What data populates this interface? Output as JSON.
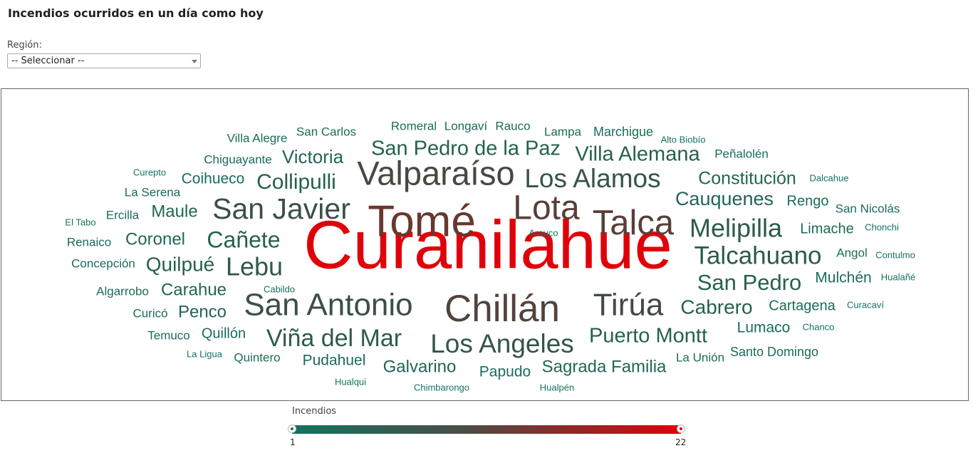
{
  "header": {
    "title": "Incendios ocurridos en un día como hoy"
  },
  "filter": {
    "label": "Región:",
    "selected": "-- Seleccionar --"
  },
  "legend": {
    "title": "Incendios",
    "min": "1",
    "max": "22",
    "color_min": "#137260",
    "color_max": "#e0000a"
  },
  "cloud": {
    "words": [
      {
        "text": "Curanilahue",
        "value": 22
      },
      {
        "text": "Tomé",
        "value": 13
      },
      {
        "text": "Lota",
        "value": 11
      },
      {
        "text": "Talca",
        "value": 11
      },
      {
        "text": "Chillán",
        "value": 10
      },
      {
        "text": "Valparaíso",
        "value": 9
      },
      {
        "text": "Tirúa",
        "value": 8
      },
      {
        "text": "San Javier",
        "value": 7
      },
      {
        "text": "San Antonio",
        "value": 7
      },
      {
        "text": "Los Alamos",
        "value": 6
      },
      {
        "text": "Los Angeles",
        "value": 6
      },
      {
        "text": "Melipilla",
        "value": 5
      },
      {
        "text": "Talcahuano",
        "value": 5
      },
      {
        "text": "Viña del Mar",
        "value": 5
      },
      {
        "text": "Lebu",
        "value": 5
      },
      {
        "text": "Cañete",
        "value": 4
      },
      {
        "text": "Collipulli",
        "value": 4
      },
      {
        "text": "San Pedro de la Paz",
        "value": 4
      },
      {
        "text": "Villa Alemana",
        "value": 4
      },
      {
        "text": "Puerto Montt",
        "value": 4
      },
      {
        "text": "San Pedro",
        "value": 4
      },
      {
        "text": "Quilpué",
        "value": 4
      },
      {
        "text": "Cabrero",
        "value": 4
      },
      {
        "text": "Victoria",
        "value": 3
      },
      {
        "text": "Cauquenes",
        "value": 3
      },
      {
        "text": "Constitución",
        "value": 3
      },
      {
        "text": "Coronel",
        "value": 3
      },
      {
        "text": "Maule",
        "value": 3
      },
      {
        "text": "Carahue",
        "value": 3
      },
      {
        "text": "Sagrada Familia",
        "value": 3
      },
      {
        "text": "Galvarino",
        "value": 3
      },
      {
        "text": "Penco",
        "value": 3
      },
      {
        "text": "Coihueco",
        "value": 2
      },
      {
        "text": "Limache",
        "value": 2
      },
      {
        "text": "Mulchén",
        "value": 2
      },
      {
        "text": "Cartagena",
        "value": 2
      },
      {
        "text": "Lumaco",
        "value": 2
      },
      {
        "text": "Pudahuel",
        "value": 2
      },
      {
        "text": "Papudo",
        "value": 2
      },
      {
        "text": "Quillón",
        "value": 2
      },
      {
        "text": "Rengo",
        "value": 2
      },
      {
        "text": "Santo Domingo",
        "value": 2
      },
      {
        "text": "Marchigue",
        "value": 2
      },
      {
        "text": "Chiguayante",
        "value": 2
      },
      {
        "text": "Villa Alegre",
        "value": 2
      },
      {
        "text": "San Carlos",
        "value": 2
      },
      {
        "text": "Romeral",
        "value": 2
      },
      {
        "text": "Longaví",
        "value": 2
      },
      {
        "text": "Rauco",
        "value": 2
      },
      {
        "text": "Lampa",
        "value": 2
      },
      {
        "text": "Peñalolén",
        "value": 2
      },
      {
        "text": "Ercilla",
        "value": 2
      },
      {
        "text": "La Serena",
        "value": 2
      },
      {
        "text": "Renaico",
        "value": 2
      },
      {
        "text": "Concepción",
        "value": 2
      },
      {
        "text": "Algarrobo",
        "value": 2
      },
      {
        "text": "Curicó",
        "value": 2
      },
      {
        "text": "Temuco",
        "value": 2
      },
      {
        "text": "Quintero",
        "value": 2
      },
      {
        "text": "San Nicolás",
        "value": 2
      },
      {
        "text": "Angol",
        "value": 2
      },
      {
        "text": "La Unión",
        "value": 2
      },
      {
        "text": "Alto Biobío",
        "value": 1
      },
      {
        "text": "Curepto",
        "value": 1
      },
      {
        "text": "Dalcahue",
        "value": 1
      },
      {
        "text": "El Tabo",
        "value": 1
      },
      {
        "text": "Arauco",
        "value": 1
      },
      {
        "text": "Chonchi",
        "value": 1
      },
      {
        "text": "Contulmo",
        "value": 1
      },
      {
        "text": "Cabildo",
        "value": 1
      },
      {
        "text": "Hualañé",
        "value": 1
      },
      {
        "text": "Curacaví",
        "value": 1
      },
      {
        "text": "Chanco",
        "value": 1
      },
      {
        "text": "La Ligua",
        "value": 1
      },
      {
        "text": "Hualqui",
        "value": 1
      },
      {
        "text": "Chimbarongo",
        "value": 1
      },
      {
        "text": "Hualpén",
        "value": 1
      }
    ]
  }
}
